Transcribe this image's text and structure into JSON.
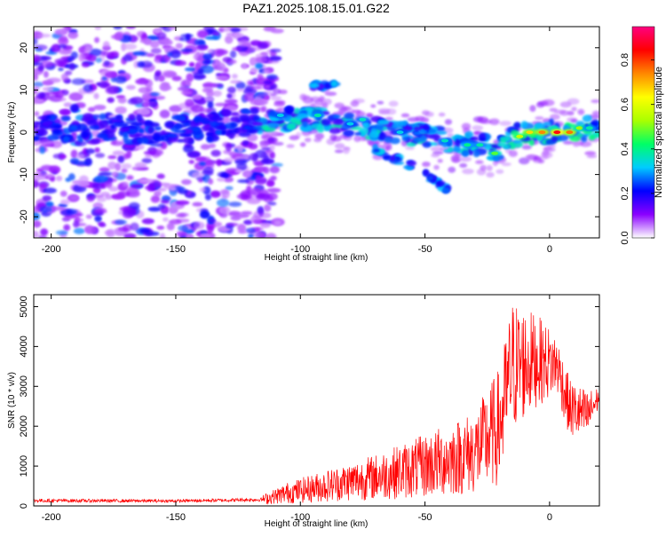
{
  "title": "PAZ1.2025.108.15.01.G22",
  "chart_data": [
    {
      "type": "heatmap",
      "title": "PAZ1.2025.108.15.01.G22",
      "xlabel": "Height of straight line (km)",
      "ylabel": "Frequency (Hz)",
      "xlim": [
        -207,
        20
      ],
      "ylim": [
        -25,
        25
      ],
      "x_ticks": [
        -200,
        -150,
        -100,
        -50,
        0
      ],
      "x_tick_labels": [
        "-200",
        "-150",
        "-100",
        "-50",
        "0"
      ],
      "y_ticks": [
        -20,
        -10,
        0,
        10,
        20
      ],
      "y_tick_labels": [
        "-20",
        "-10",
        "0",
        "10",
        "20"
      ],
      "colorbar": {
        "label": "Normalized spectral amplitude",
        "range": [
          0,
          0.95
        ],
        "ticks": [
          0,
          0.2,
          0.4,
          0.6,
          0.8
        ],
        "tick_labels": [
          "0.0",
          "0.2",
          "0.4",
          "0.6",
          "0.8"
        ],
        "colormap": [
          "#ffffff",
          "#8a00ff",
          "#0000ff",
          "#00ccff",
          "#00ff66",
          "#aaff00",
          "#ffff00",
          "#ff8800",
          "#ff0000",
          "#ff0080"
        ]
      },
      "ridge": {
        "description_points": [
          {
            "x": -205,
            "y": 1
          },
          {
            "x": -150,
            "y": 0.5
          },
          {
            "x": -110,
            "y": 3
          },
          {
            "x": -90,
            "y": 3
          },
          {
            "x": -70,
            "y": 1
          },
          {
            "x": -50,
            "y": -1
          },
          {
            "x": -30,
            "y": -3
          },
          {
            "x": -20,
            "y": -4
          },
          {
            "x": -15,
            "y": -1
          },
          {
            "x": -5,
            "y": 0
          },
          {
            "x": 5,
            "y": 0
          },
          {
            "x": 10,
            "y": 1
          },
          {
            "x": 20,
            "y": 0.5
          }
        ],
        "peak": {
          "x": 3,
          "y": 0,
          "value": 0.9
        },
        "noise_end_x": -117
      }
    },
    {
      "type": "line",
      "title": "",
      "xlabel": "Height of straight line (km)",
      "ylabel": "SNR (10 * v/v)",
      "xlim": [
        -207,
        20
      ],
      "ylim": [
        0,
        5300
      ],
      "x_ticks": [
        -200,
        -150,
        -100,
        -50,
        0
      ],
      "x_tick_labels": [
        "-200",
        "-150",
        "-100",
        "-50",
        "0"
      ],
      "y_ticks": [
        0,
        1000,
        2000,
        3000,
        4000,
        5000
      ],
      "y_tick_labels": [
        "0",
        "1000",
        "2000",
        "3000",
        "4000",
        "5000"
      ],
      "series": [
        {
          "color": "#ff0000",
          "envelope": [
            {
              "x": -207,
              "lo": 20,
              "hi": 250
            },
            {
              "x": -150,
              "lo": 30,
              "hi": 220
            },
            {
              "x": -115,
              "lo": 40,
              "hi": 280
            },
            {
              "x": -105,
              "lo": 60,
              "hi": 600
            },
            {
              "x": -90,
              "lo": 100,
              "hi": 900
            },
            {
              "x": -70,
              "lo": 150,
              "hi": 1300
            },
            {
              "x": -50,
              "lo": 200,
              "hi": 1800
            },
            {
              "x": -30,
              "lo": 300,
              "hi": 2400
            },
            {
              "x": -20,
              "lo": 500,
              "hi": 3500
            },
            {
              "x": -15,
              "lo": 1800,
              "hi": 5200
            },
            {
              "x": -5,
              "lo": 2500,
              "hi": 4800
            },
            {
              "x": 3,
              "lo": 2800,
              "hi": 4300
            },
            {
              "x": 8,
              "lo": 1700,
              "hi": 3200
            },
            {
              "x": 15,
              "lo": 1600,
              "hi": 2900
            },
            {
              "x": 20,
              "lo": 2500,
              "hi": 3000
            }
          ]
        }
      ]
    }
  ]
}
